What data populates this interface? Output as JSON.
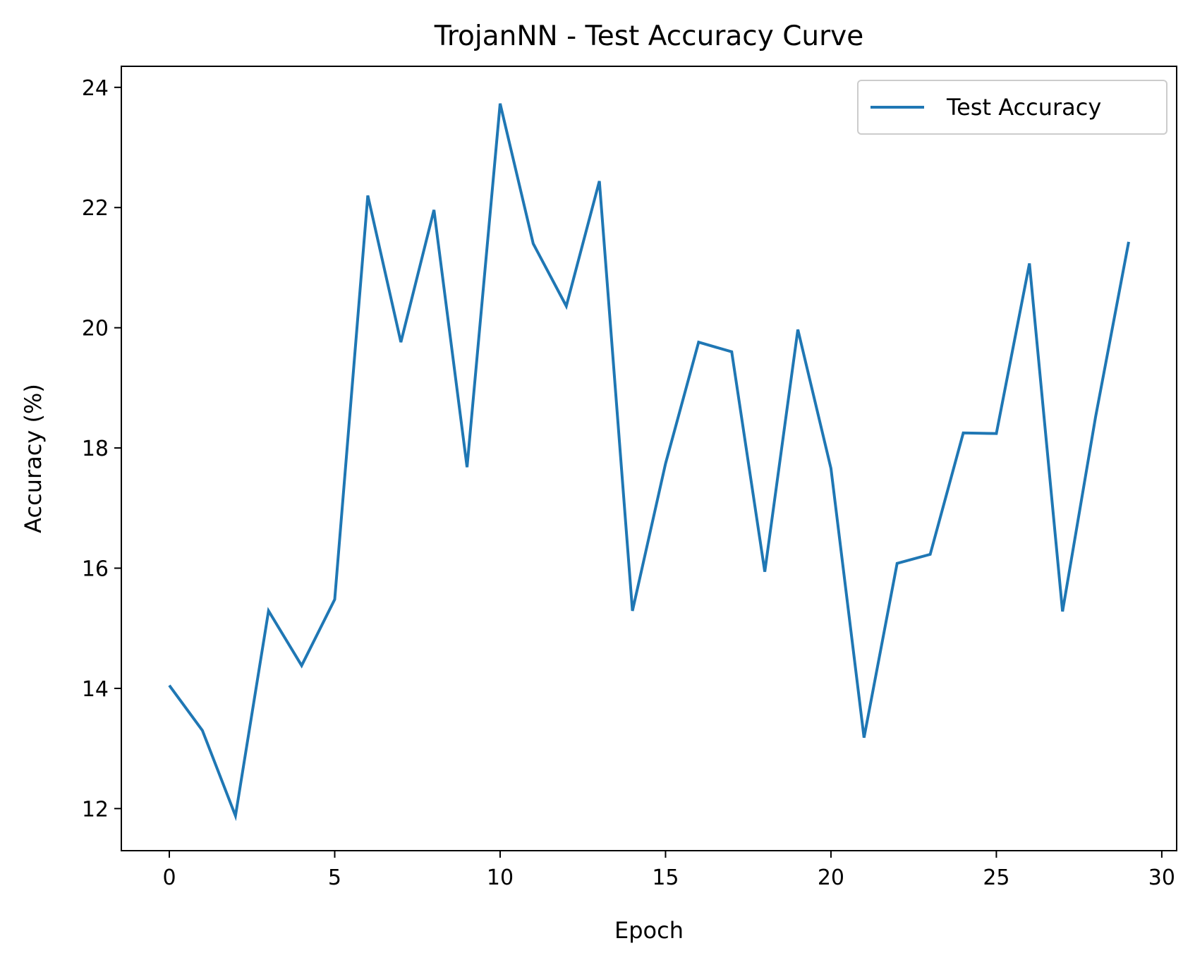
{
  "chart_data": {
    "type": "line",
    "title": "TrojanNN - Test Accuracy Curve",
    "xlabel": "Epoch",
    "ylabel": "Accuracy (%)",
    "xlim": [
      -1.45,
      30.45
    ],
    "ylim": [
      11.3,
      24.35
    ],
    "xticks": [
      0,
      5,
      10,
      15,
      20,
      25,
      30
    ],
    "yticks": [
      12,
      14,
      16,
      18,
      20,
      22,
      24
    ],
    "grid": false,
    "legend_position": "upper right",
    "series": [
      {
        "name": "Test Accuracy",
        "color": "#1f77b4",
        "x": [
          0,
          1,
          2,
          3,
          4,
          5,
          6,
          7,
          8,
          9,
          10,
          11,
          12,
          13,
          14,
          15,
          16,
          17,
          18,
          19,
          20,
          21,
          22,
          23,
          24,
          25,
          26,
          27,
          28,
          29
        ],
        "values": [
          14.05,
          13.3,
          11.88,
          15.29,
          14.38,
          15.48,
          22.2,
          19.76,
          21.96,
          17.68,
          23.73,
          21.4,
          20.36,
          22.44,
          15.29,
          17.74,
          19.76,
          19.6,
          15.94,
          19.97,
          17.66,
          13.18,
          16.08,
          16.23,
          18.25,
          18.24,
          21.07,
          15.28,
          18.52,
          21.43
        ]
      }
    ]
  },
  "colors": {
    "axes": "#000000",
    "background": "#ffffff",
    "legend_border": "#cccccc"
  }
}
